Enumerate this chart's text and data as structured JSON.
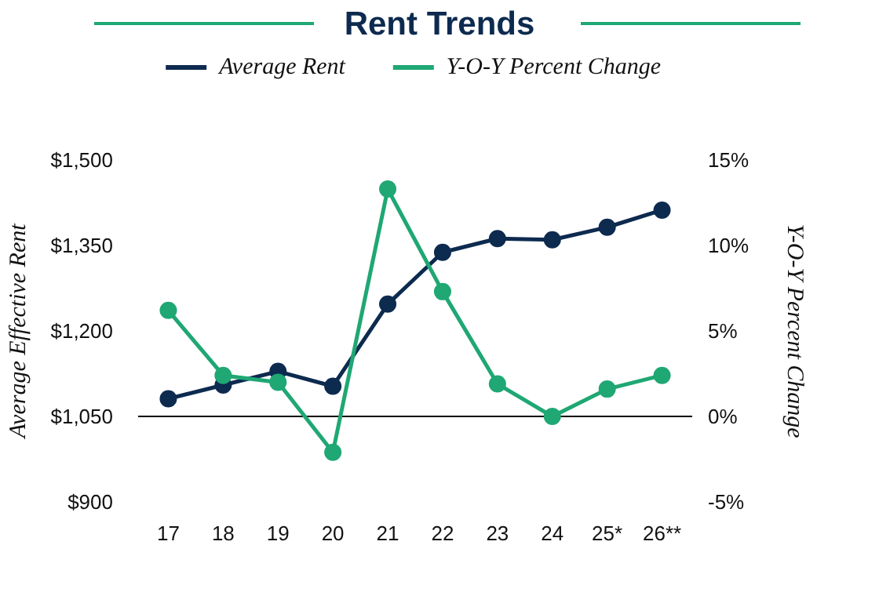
{
  "chart_data": {
    "type": "line",
    "title": "Rent Trends",
    "categories": [
      "17",
      "18",
      "19",
      "20",
      "21",
      "22",
      "23",
      "24",
      "25*",
      "26**"
    ],
    "series": [
      {
        "name": "Average Rent",
        "color": "#0d2a4f",
        "values": [
          1081,
          1105,
          1129,
          1103,
          1247,
          1338,
          1362,
          1360,
          1382,
          1412
        ]
      },
      {
        "name": "Y-O-Y Percent Change",
        "color": "#1fa774",
        "axis": "y2",
        "values": [
          6.2,
          2.4,
          2.0,
          -2.1,
          13.3,
          7.3,
          1.9,
          0,
          1.6,
          2.4
        ]
      }
    ],
    "ylabel": "Average Effective Rent",
    "y2label": "Y-O-Y Percent Change",
    "ylim": [
      900,
      1500
    ],
    "yticks": [
      {
        "value": 900,
        "label": "$900"
      },
      {
        "value": 1050,
        "label": "$1,050"
      },
      {
        "value": 1200,
        "label": "$1,200"
      },
      {
        "value": 1350,
        "label": "$1,350"
      },
      {
        "value": 1500,
        "label": "$1,500"
      }
    ],
    "y2lim": [
      -5,
      15
    ],
    "y2ticks": [
      {
        "value": -5,
        "label": "-5%"
      },
      {
        "value": 0,
        "label": "0%"
      },
      {
        "value": 5,
        "label": "5%"
      },
      {
        "value": 10,
        "label": "10%"
      },
      {
        "value": 15,
        "label": "15%"
      }
    ],
    "ref_lines": [
      {
        "axis": "y",
        "value": 1050,
        "color": "#000000"
      }
    ],
    "legend": "top",
    "marker": "circle",
    "grid": false
  }
}
